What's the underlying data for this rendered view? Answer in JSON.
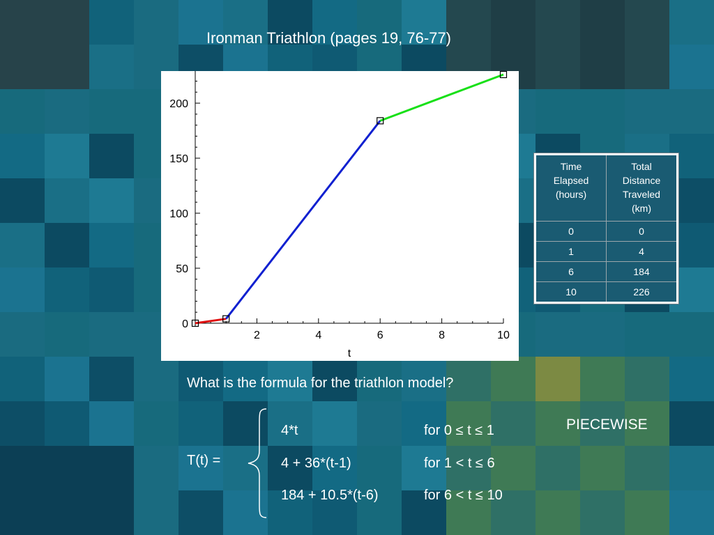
{
  "title": "Ironman Triathlon (pages 19, 76-77)",
  "chart_data": {
    "type": "line",
    "xlabel": "t",
    "ylabel": "",
    "xlim": [
      0,
      10
    ],
    "ylim": [
      0,
      226
    ],
    "xticks": [
      2,
      4,
      6,
      8,
      10
    ],
    "yticks": [
      0,
      50,
      100,
      150,
      200
    ],
    "tick_labels_x": [
      "2",
      "4",
      "6",
      "8",
      "10"
    ],
    "tick_labels_y": [
      "0",
      "50",
      "100",
      "150",
      "200"
    ],
    "grid": false,
    "series": [
      {
        "color": "#e01010",
        "x": [
          0,
          1
        ],
        "y": [
          0,
          4
        ]
      },
      {
        "color": "#1020d0",
        "x": [
          1,
          6
        ],
        "y": [
          4,
          184
        ]
      },
      {
        "color": "#18e018",
        "x": [
          6,
          10
        ],
        "y": [
          184,
          226
        ]
      }
    ],
    "markers": {
      "shape": "square",
      "x": [
        0,
        1,
        6,
        10
      ],
      "y": [
        0,
        4,
        184,
        226
      ]
    }
  },
  "table": {
    "headers": [
      "Time Elapsed (hours)",
      "Total Distance Traveled (km)"
    ],
    "rows": [
      [
        "0",
        "0"
      ],
      [
        "1",
        "4"
      ],
      [
        "6",
        "184"
      ],
      [
        "10",
        "226"
      ]
    ]
  },
  "question": "What is the formula for the triathlon model?",
  "piecewise_label": "PIECEWISE",
  "formula": {
    "lhs": "T(t) =",
    "pieces": [
      {
        "expr": "4*t",
        "cond": "for 0 ≤ t ≤ 1"
      },
      {
        "expr": "4 + 36*(t-1)",
        "cond": "for 1 < t ≤ 6"
      },
      {
        "expr": "184 + 10.5*(t-6)",
        "cond": "for 6 < t ≤ 10"
      }
    ]
  },
  "colors": {
    "background": "#13607a",
    "text": "#ffffff",
    "table_cell": "#1a5b72"
  }
}
